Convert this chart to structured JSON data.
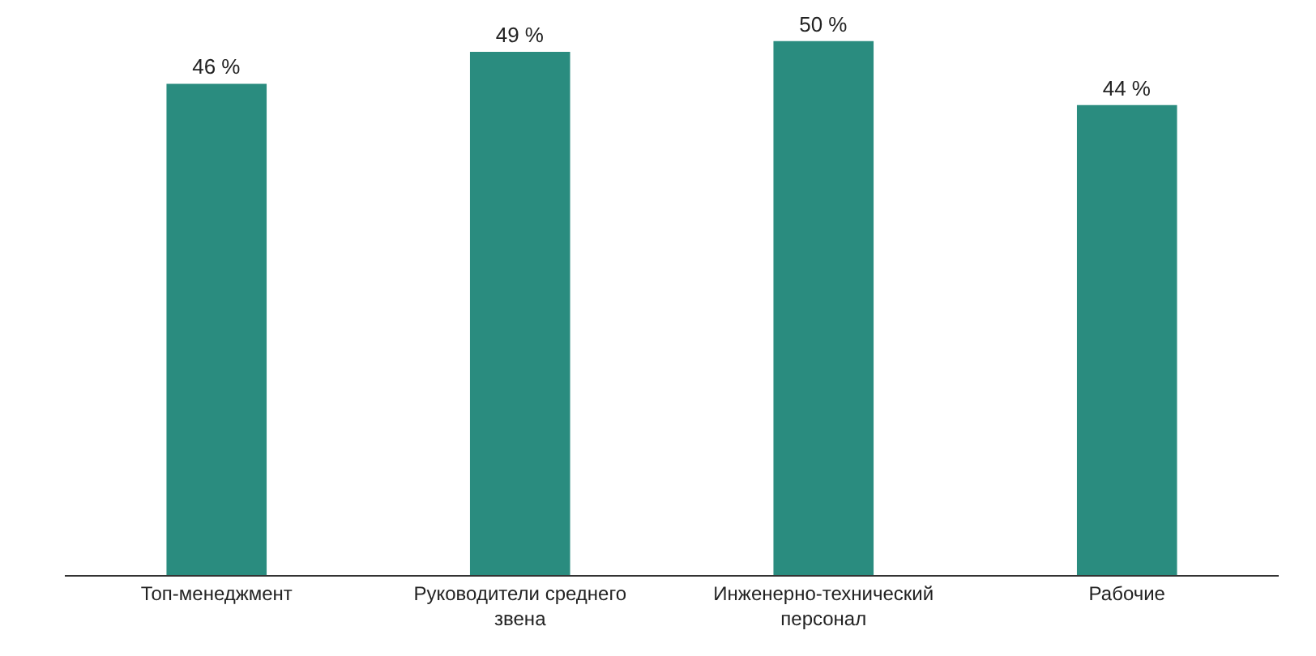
{
  "chart_data": {
    "type": "bar",
    "categories": [
      "Топ-менеджмент",
      "Руководители среднего звена",
      "Инженерно-технический персонал",
      "Рабочие"
    ],
    "values": [
      46,
      49,
      50,
      44
    ],
    "value_labels": [
      "46 %",
      "49 %",
      "50 %",
      "44 %"
    ],
    "color": "#2a8c7f",
    "tick_labels": "x"
  }
}
